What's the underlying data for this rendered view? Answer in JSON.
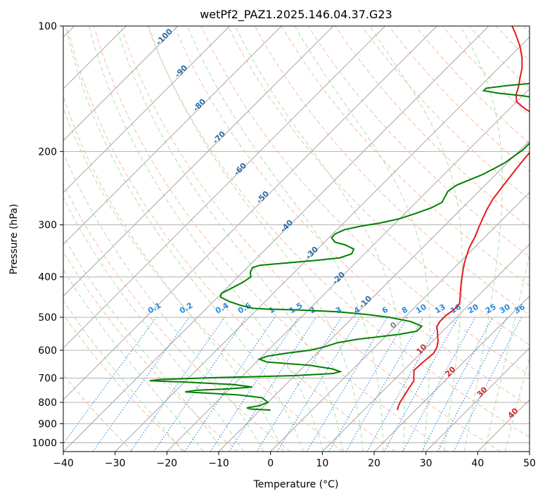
{
  "chart_data": {
    "type": "line",
    "title": "wetPf2_PAZ1.2025.146.04.37.G23",
    "xlabel": "Temperature (°C)",
    "ylabel": "Pressure (hPa)",
    "xlim": [
      -40,
      50
    ],
    "ylim": [
      1050,
      100
    ],
    "y_scale": "log",
    "x_ticks": [
      -40,
      -30,
      -20,
      -10,
      0,
      10,
      20,
      30,
      40,
      50
    ],
    "y_ticks": [
      100,
      200,
      300,
      400,
      500,
      600,
      700,
      800,
      900,
      1000
    ],
    "grid": true,
    "skew_deg": 45,
    "series": [
      {
        "color": "#e41a1c",
        "points": [
          [
            16.5,
            835
          ],
          [
            16.0,
            820
          ],
          [
            15.5,
            800
          ],
          [
            15.0,
            770
          ],
          [
            14.5,
            740
          ],
          [
            14.0,
            710
          ],
          [
            13.0,
            690
          ],
          [
            12.0,
            670
          ],
          [
            12.2,
            640
          ],
          [
            12.5,
            610
          ],
          [
            12.0,
            590
          ],
          [
            11.0,
            570
          ],
          [
            10.0,
            555
          ],
          [
            9.0,
            540
          ],
          [
            8.0,
            527
          ],
          [
            7.6,
            512
          ],
          [
            7.6,
            495
          ],
          [
            8.0,
            480
          ],
          [
            8.0,
            465
          ],
          [
            7.0,
            450
          ],
          [
            5.5,
            430
          ],
          [
            4.0,
            410
          ],
          [
            2.5,
            390
          ],
          [
            1.0,
            370
          ],
          [
            0.0,
            355
          ],
          [
            -1.0,
            340
          ],
          [
            -2.0,
            320
          ],
          [
            -3.0,
            305
          ],
          [
            -4.0,
            290
          ],
          [
            -5.0,
            275
          ],
          [
            -5.8,
            260
          ],
          [
            -6.3,
            245
          ],
          [
            -6.8,
            230
          ],
          [
            -7.2,
            218
          ],
          [
            -7.5,
            208
          ],
          [
            -7.7,
            200
          ],
          [
            -8.0,
            190
          ],
          [
            -9.0,
            180
          ],
          [
            -10.5,
            172
          ],
          [
            -13.0,
            165
          ],
          [
            -17.0,
            158
          ],
          [
            -20.0,
            152
          ],
          [
            -21.5,
            146
          ],
          [
            -22.5,
            140
          ],
          [
            -24.0,
            133
          ],
          [
            -25.5,
            126
          ],
          [
            -27.5,
            119
          ],
          [
            -30.0,
            112
          ],
          [
            -33.5,
            104
          ],
          [
            -35.5,
            100
          ]
        ]
      },
      {
        "color": "#008000",
        "points": [
          [
            -8.0,
            835
          ],
          [
            -12.0,
            830
          ],
          [
            -13.0,
            825
          ],
          [
            -11.0,
            815
          ],
          [
            -10.0,
            800
          ],
          [
            -12.0,
            780
          ],
          [
            -17.0,
            768
          ],
          [
            -22.0,
            762
          ],
          [
            -28.0,
            755
          ],
          [
            -26.0,
            748
          ],
          [
            -20.0,
            742
          ],
          [
            -16.0,
            735
          ],
          [
            -20.0,
            725
          ],
          [
            -30.0,
            715
          ],
          [
            -37.0,
            710
          ],
          [
            -35.0,
            705
          ],
          [
            -25.0,
            698
          ],
          [
            -10.0,
            690
          ],
          [
            -3.0,
            682
          ],
          [
            -2.0,
            675
          ],
          [
            -4.0,
            665
          ],
          [
            -9.0,
            652
          ],
          [
            -18.0,
            640
          ],
          [
            -20.0,
            630
          ],
          [
            -19.0,
            620
          ],
          [
            -16.0,
            610
          ],
          [
            -12.0,
            600
          ],
          [
            -10.0,
            590
          ],
          [
            -8.0,
            575
          ],
          [
            -5.0,
            565
          ],
          [
            2.0,
            550
          ],
          [
            5.0,
            540
          ],
          [
            5.0,
            525
          ],
          [
            2.0,
            512
          ],
          [
            -3.0,
            500
          ],
          [
            -8.0,
            492
          ],
          [
            -14.0,
            485
          ],
          [
            -22.0,
            480
          ],
          [
            -28.0,
            478
          ],
          [
            -31.0,
            476
          ],
          [
            -34.0,
            468
          ],
          [
            -37.0,
            458
          ],
          [
            -39.5,
            447
          ],
          [
            -40.0,
            438
          ],
          [
            -39.0,
            425
          ],
          [
            -38.0,
            412
          ],
          [
            -37.5,
            400
          ],
          [
            -38.5,
            390
          ],
          [
            -39.0,
            380
          ],
          [
            -38.0,
            375
          ],
          [
            -33.0,
            370
          ],
          [
            -28.0,
            365
          ],
          [
            -24.0,
            360
          ],
          [
            -22.5,
            352
          ],
          [
            -23.0,
            343
          ],
          [
            -25.5,
            335
          ],
          [
            -28.0,
            330
          ],
          [
            -29.5,
            322
          ],
          [
            -29.5,
            315
          ],
          [
            -28.5,
            308
          ],
          [
            -26.0,
            302
          ],
          [
            -23.0,
            297
          ],
          [
            -20.0,
            290
          ],
          [
            -18.0,
            282
          ],
          [
            -16.0,
            273
          ],
          [
            -15.0,
            265
          ],
          [
            -15.5,
            257
          ],
          [
            -16.0,
            249
          ],
          [
            -15.5,
            241
          ],
          [
            -14.0,
            234
          ],
          [
            -12.5,
            227
          ],
          [
            -11.5,
            220
          ],
          [
            -10.5,
            213
          ],
          [
            -10.0,
            205
          ],
          [
            -9.5,
            198
          ],
          [
            -9.5,
            190
          ],
          [
            -9.5,
            183
          ],
          [
            -10.0,
            176
          ],
          [
            -10.5,
            170
          ],
          [
            -11.0,
            164
          ],
          [
            -11.5,
            158
          ],
          [
            -12.5,
            153
          ],
          [
            -15.0,
            150
          ],
          [
            -20.0,
            147
          ],
          [
            -25.0,
            145
          ],
          [
            -28.5,
            143
          ],
          [
            -28.5,
            141
          ],
          [
            -25.0,
            139
          ],
          [
            -20.0,
            137
          ],
          [
            -16.0,
            134
          ],
          [
            -14.0,
            131
          ],
          [
            -13.0,
            127
          ],
          [
            -12.5,
            122
          ],
          [
            -12.0,
            117
          ],
          [
            -10.5,
            112
          ],
          [
            -9.0,
            108
          ],
          [
            -8.0,
            104
          ],
          [
            -7.2,
            100
          ]
        ]
      }
    ],
    "mixing_ratio_labels": [
      "0.1",
      "0.2",
      "0.4",
      "0.6",
      "1",
      "1.5",
      "2",
      "3",
      "4",
      "6",
      "8",
      "10",
      "13",
      "16",
      "20",
      "25",
      "30",
      "36"
    ],
    "mixing_ratio_values": [
      0.1,
      0.2,
      0.4,
      0.6,
      1,
      1.5,
      2,
      3,
      4,
      6,
      8,
      10,
      13,
      16,
      20,
      25,
      30,
      36
    ],
    "moist_adiabat_labels": [
      "-100",
      "-90",
      "-80",
      "-70",
      "-60",
      "-50",
      "-40",
      "-30",
      "-20",
      "-10",
      "0",
      "10",
      "20",
      "30",
      "40"
    ],
    "moist_adiabat_values": [
      -100,
      -90,
      -80,
      -70,
      -60,
      -50,
      -40,
      -30,
      -20,
      -10,
      0,
      10,
      20,
      30,
      40
    ],
    "colors": {
      "temperature": "#e41a1c",
      "dewpoint": "#008000",
      "isotherm": "#a6a6a6",
      "dry_adiabat": "#f4a582",
      "moist_adiabat": "#a6d8a6",
      "mixing_ratio": "#3a8fe0",
      "label_cold": "#2b6ca3",
      "label_zero": "#808080",
      "label_warm": "#d62728",
      "mixing_label": "#2b8ae0"
    }
  }
}
